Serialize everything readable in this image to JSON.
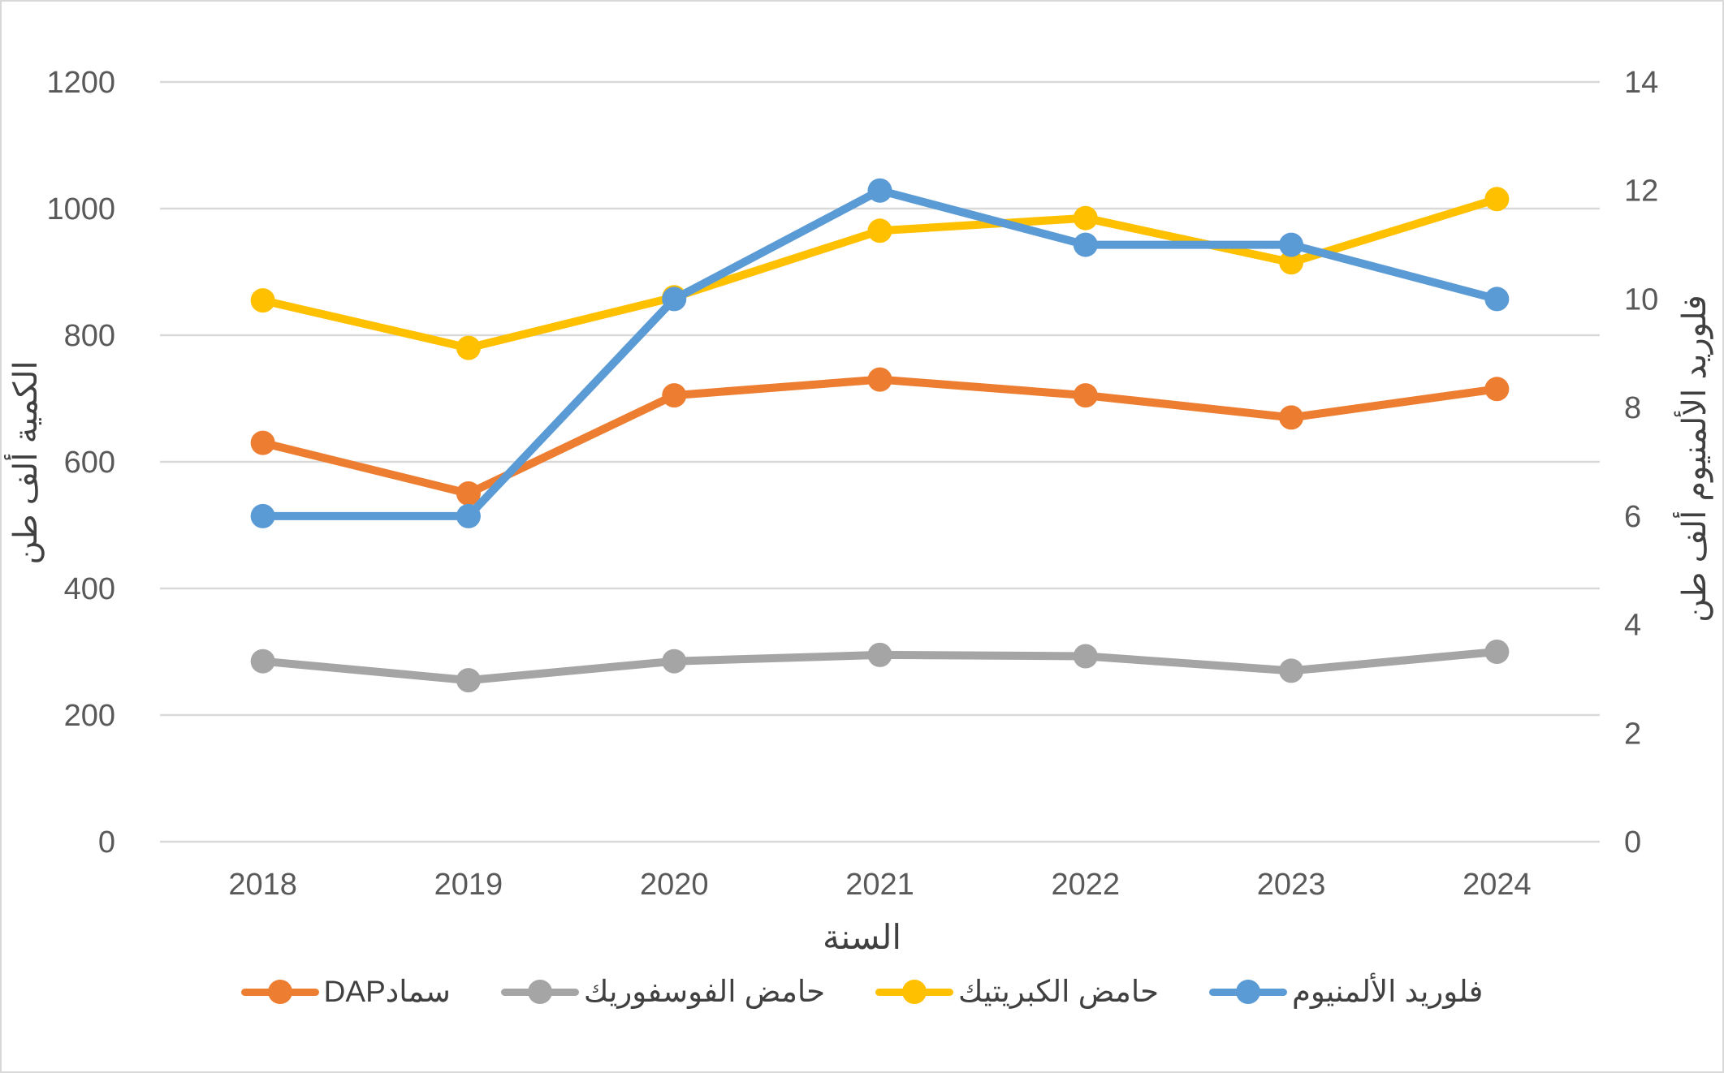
{
  "chart_data": {
    "type": "line",
    "title": "",
    "categories": [
      "2018",
      "2019",
      "2020",
      "2021",
      "2022",
      "2023",
      "2024"
    ],
    "xlabel": "السنة",
    "ylabel_left": "الكمية ألف طن",
    "ylabel_right": "فلوريد الألمنيوم ألف طن",
    "y_left_axis": {
      "min": 0,
      "max": 1200,
      "step": 200,
      "tick_labels": [
        "0",
        "200",
        "400",
        "600",
        "800",
        "1000",
        "1200"
      ]
    },
    "y_right_axis": {
      "min": 0,
      "max": 14,
      "step": 2,
      "tick_labels": [
        "0",
        "2",
        "4",
        "6",
        "8",
        "10",
        "12",
        "14"
      ]
    },
    "grid": "horizontal-only",
    "legend_position": "bottom",
    "series": [
      {
        "name": "سمادDAP",
        "axis": "left",
        "color": "#ED7D31",
        "values": [
          630,
          550,
          705,
          730,
          705,
          670,
          715
        ]
      },
      {
        "name": "حامض الفوسفوريك",
        "axis": "left",
        "color": "#A5A5A5",
        "values": [
          285,
          255,
          285,
          295,
          293,
          270,
          300
        ]
      },
      {
        "name": "حامض الكبريتيك",
        "axis": "left",
        "color": "#FFC000",
        "values": [
          855,
          780,
          860,
          965,
          985,
          915,
          1015
        ]
      },
      {
        "name": "فلوريد الألمنيوم",
        "axis": "right",
        "color": "#5B9BD5",
        "values": [
          6,
          6,
          10,
          12,
          11,
          11,
          10
        ]
      }
    ]
  },
  "colors": {
    "background": "#FFFFFF",
    "gridline": "#D9D9D9",
    "tick_label": "#595959",
    "axis_title": "#404040",
    "frame_border": "#D9D9D9"
  }
}
